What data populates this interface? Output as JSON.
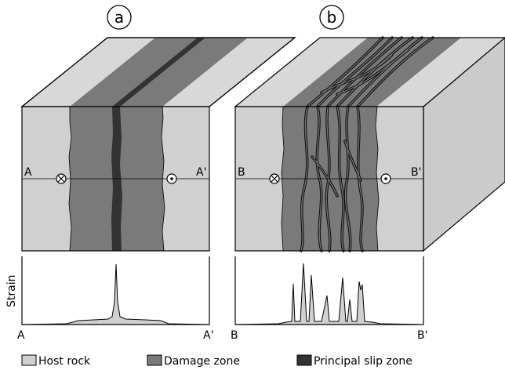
{
  "panels": [
    {
      "id": "a",
      "letter": "a",
      "section_start": "A",
      "section_end": "A'"
    },
    {
      "id": "b",
      "letter": "b",
      "section_start": "B",
      "section_end": "B'"
    }
  ],
  "strain_axis_label": "Strain",
  "legend": [
    {
      "label": "Host rock",
      "color": "#d0d0d0"
    },
    {
      "label": "Damage zone",
      "color": "#7a7a7a"
    },
    {
      "label": "Principal slip zone",
      "color": "#333333"
    }
  ],
  "symbols": {
    "left_motion": "into-page-circle-cross",
    "right_motion": "out-of-page-circle-dot"
  },
  "colors": {
    "host_front": "#d0d0d0",
    "host_top": "#d8d8d8",
    "damage": "#7a7a7a",
    "slip": "#333333",
    "side": "#cbcbcb"
  }
}
